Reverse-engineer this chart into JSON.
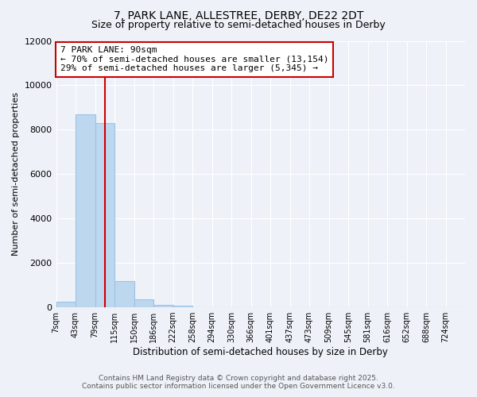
{
  "title": "7, PARK LANE, ALLESTREE, DERBY, DE22 2DT",
  "subtitle": "Size of property relative to semi-detached houses in Derby",
  "xlabel": "Distribution of semi-detached houses by size in Derby",
  "ylabel": "Number of semi-detached properties",
  "bin_labels": [
    "7sqm",
    "43sqm",
    "79sqm",
    "115sqm",
    "150sqm",
    "186sqm",
    "222sqm",
    "258sqm",
    "294sqm",
    "330sqm",
    "366sqm",
    "401sqm",
    "437sqm",
    "473sqm",
    "509sqm",
    "545sqm",
    "581sqm",
    "616sqm",
    "652sqm",
    "688sqm",
    "724sqm"
  ],
  "bar_heights": [
    250,
    8700,
    8300,
    1200,
    350,
    100,
    80,
    20,
    0,
    0,
    0,
    0,
    0,
    0,
    0,
    0,
    0,
    0,
    0,
    0,
    0
  ],
  "bar_color": "#bdd7ee",
  "bar_edge_color": "#9dc3e6",
  "vline_index": 2.5,
  "vline_color": "#cc0000",
  "annotation_line1": "7 PARK LANE: 90sqm",
  "annotation_line2": "← 70% of semi-detached houses are smaller (13,154)",
  "annotation_line3": "29% of semi-detached houses are larger (5,345) →",
  "ylim": [
    0,
    12000
  ],
  "yticks": [
    0,
    2000,
    4000,
    6000,
    8000,
    10000,
    12000
  ],
  "background_color": "#eef2f8",
  "footer_line1": "Contains HM Land Registry data © Crown copyright and database right 2025.",
  "footer_line2": "Contains public sector information licensed under the Open Government Licence v3.0.",
  "title_fontsize": 10,
  "subtitle_fontsize": 9,
  "annotation_box_facecolor": "#ffffff",
  "annotation_box_edgecolor": "#cc0000",
  "grid_color": "#ffffff"
}
